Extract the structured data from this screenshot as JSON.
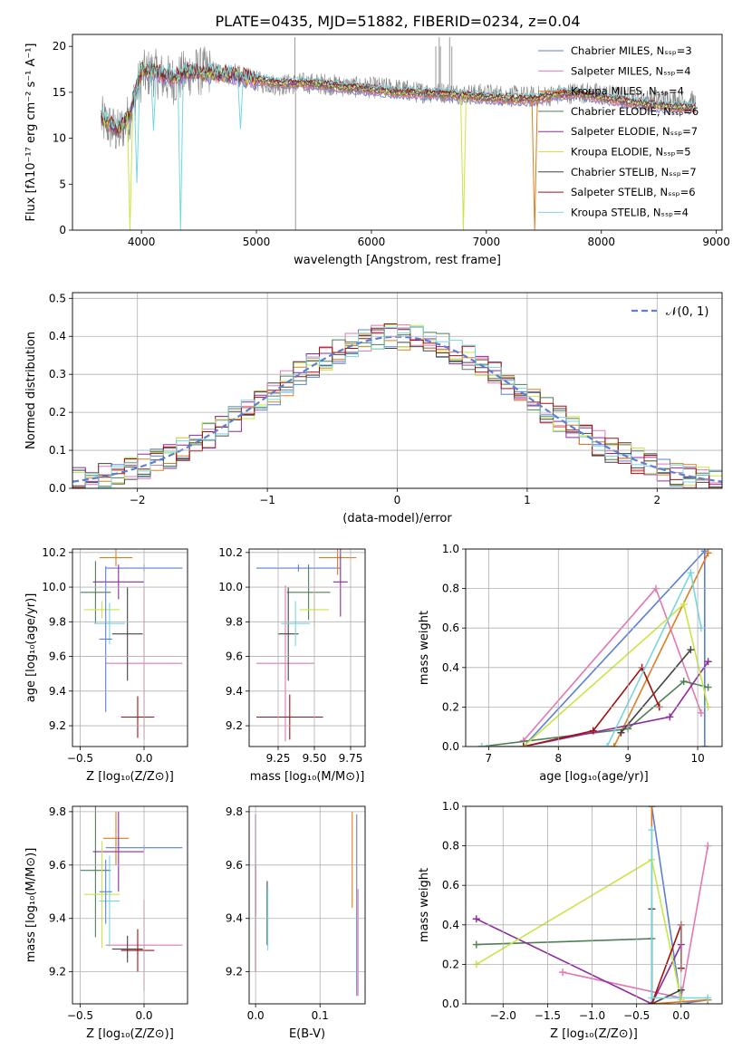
{
  "title": "PLATE=0435, MJD=51882, FIBERID=0234, z=0.04",
  "colors": {
    "chabrier_miles": "#5b7fd6",
    "salpeter_miles": "#e377b0",
    "kroupa_miles": "#e07b1f",
    "chabrier_elodie": "#4f7f55",
    "salpeter_elodie": "#8e2aa0",
    "kroupa_elodie": "#c8e646",
    "chabrier_stelib": "#444444",
    "salpeter_stelib": "#a31010",
    "kroupa_stelib": "#76d7e0",
    "observed": "#808080",
    "gaussian": "#5b7fd6"
  },
  "chart_data": [
    {
      "id": "spectrum",
      "type": "line",
      "xlabel": "wavelength [Angstrom, rest frame]",
      "ylabel": "Flux [fλ10⁻¹⁷ erg cm⁻² s⁻¹ A⁻¹]",
      "xlim": [
        3400,
        9050
      ],
      "ylim": [
        0,
        21.3
      ],
      "xticks": [
        "4000",
        "5000",
        "6000",
        "7000",
        "8000",
        "9000"
      ],
      "yticks": [
        "0",
        "5",
        "10",
        "15",
        "20"
      ],
      "legend_position": "top-right",
      "legend": [
        "Chabrier MILES, Nₛₛₚ=3",
        "Salpeter MILES, Nₛₛₚ=4",
        "Kroupa MILES, Nₛₛₚ=4",
        "Chabrier ELODIE, Nₛₛₚ=6",
        "Salpeter ELODIE, Nₛₛₚ=7",
        "Kroupa ELODIE, Nₛₛₚ=5",
        "Chabrier STELIB, Nₛₛₚ=7",
        "Salpeter STELIB, Nₛₛₚ=6",
        "Kroupa STELIB, Nₛₛₚ=4"
      ],
      "observed_continuum": [
        [
          3650,
          12.0
        ],
        [
          3800,
          10.5
        ],
        [
          3900,
          12.5
        ],
        [
          4000,
          16.8
        ],
        [
          4100,
          17.2
        ],
        [
          4200,
          16.5
        ],
        [
          4300,
          16.3
        ],
        [
          4400,
          17.2
        ],
        [
          4600,
          17.3
        ],
        [
          4800,
          17.0
        ],
        [
          5000,
          16.2
        ],
        [
          5200,
          15.8
        ],
        [
          5400,
          16.0
        ],
        [
          5600,
          15.9
        ],
        [
          5800,
          15.6
        ],
        [
          6000,
          15.5
        ],
        [
          6200,
          15.4
        ],
        [
          6400,
          15.0
        ],
        [
          6600,
          15.0
        ],
        [
          6800,
          14.8
        ],
        [
          7000,
          14.8
        ],
        [
          7200,
          14.6
        ],
        [
          7400,
          14.5
        ],
        [
          7600,
          14.7
        ],
        [
          7800,
          15.0
        ],
        [
          8000,
          14.8
        ],
        [
          8200,
          14.5
        ],
        [
          8400,
          14.2
        ],
        [
          8600,
          14.2
        ],
        [
          8820,
          14.0
        ]
      ],
      "observed_spikes": [
        [
          5340,
          0
        ],
        [
          5335,
          21
        ],
        [
          6560,
          20
        ],
        [
          6590,
          21
        ],
        [
          6600,
          20
        ],
        [
          6700,
          20
        ],
        [
          6680,
          21
        ]
      ],
      "model_continuum": [
        [
          3650,
          12.3
        ],
        [
          3800,
          10.8
        ],
        [
          3900,
          12.8
        ],
        [
          4000,
          17.4
        ],
        [
          4100,
          17.3
        ],
        [
          4200,
          16.8
        ],
        [
          4300,
          16.6
        ],
        [
          4400,
          17.2
        ],
        [
          4600,
          17.0
        ],
        [
          4800,
          16.8
        ],
        [
          5000,
          16.4
        ],
        [
          5200,
          15.9
        ],
        [
          5400,
          16.0
        ],
        [
          5600,
          15.8
        ],
        [
          5800,
          15.5
        ],
        [
          6000,
          15.3
        ],
        [
          6200,
          15.0
        ],
        [
          6400,
          14.9
        ],
        [
          6600,
          14.8
        ],
        [
          6800,
          14.6
        ],
        [
          7000,
          14.4
        ],
        [
          7200,
          14.3
        ],
        [
          7400,
          14.2
        ],
        [
          7600,
          14.7
        ],
        [
          7800,
          14.9
        ],
        [
          8000,
          14.4
        ],
        [
          8200,
          14.0
        ],
        [
          8400,
          13.6
        ],
        [
          8600,
          13.4
        ],
        [
          8820,
          13.3
        ]
      ],
      "model_dips": [
        {
          "series": 8,
          "x": 3960,
          "y": 5.1
        },
        {
          "series": 8,
          "x": 4105,
          "y": 10.8
        },
        {
          "series": 8,
          "x": 4340,
          "y": 0.0
        },
        {
          "series": 8,
          "x": 4861,
          "y": 11.0
        },
        {
          "series": 5,
          "x": 3900,
          "y": 0.0
        },
        {
          "series": 5,
          "x": 6800,
          "y": 0.0
        },
        {
          "series": 2,
          "x": 7420,
          "y": 0.0
        }
      ]
    },
    {
      "id": "residual-histogram",
      "type": "histogram",
      "xlabel": "(data-model)/error",
      "ylabel": "Normed distribution",
      "xlim": [
        -2.5,
        2.5
      ],
      "ylim": [
        0,
        0.515
      ],
      "xticks": [
        "−2",
        "−1",
        "0",
        "1",
        "2"
      ],
      "yticks": [
        "0.0",
        "0.1",
        "0.2",
        "0.3",
        "0.4",
        "0.5"
      ],
      "legend_position": "top-right",
      "legend": [
        "𝒩(0, 1)"
      ],
      "bin_width": 0.1
    },
    {
      "id": "age-vs-Z",
      "type": "errorbar",
      "xlabel": "Z [log₁₀(Z/Z⊙)]",
      "ylabel": "age  [log₁₀(age/yr)]",
      "xlim": [
        -0.56,
        0.34
      ],
      "ylim": [
        9.08,
        10.22
      ],
      "xticks": [
        "−0.5",
        "0.0"
      ],
      "yticks": [
        "9.2",
        "9.4",
        "9.6",
        "9.8",
        "10.0",
        "10.2"
      ],
      "points": [
        {
          "series": 0,
          "x": 0.0,
          "xe": 0.3,
          "y": 10.11,
          "ye": 0.02
        },
        {
          "series": 1,
          "x": 0.0,
          "xe": 0.3,
          "y": 9.56,
          "ye": 0.44
        },
        {
          "series": 2,
          "x": -0.22,
          "xe": 0.13,
          "y": 10.17,
          "ye": 0.05
        },
        {
          "series": 3,
          "x": -0.38,
          "xe": 0.12,
          "y": 9.97,
          "ye": 0.18
        },
        {
          "series": 4,
          "x": -0.2,
          "xe": 0.2,
          "y": 10.03,
          "ye": 0.1
        },
        {
          "series": 5,
          "x": -0.33,
          "xe": 0.14,
          "y": 9.87,
          "ye": 0.05
        },
        {
          "series": 6,
          "x": -0.13,
          "xe": 0.12,
          "y": 9.73,
          "ye": 0.27
        },
        {
          "series": 7,
          "x": -0.05,
          "xe": 0.13,
          "y": 9.25,
          "ye": 0.12
        },
        {
          "series": 8,
          "x": -0.27,
          "xe": 0.12,
          "y": 9.79,
          "ye": 0.12
        },
        {
          "series": 0,
          "x": -0.3,
          "xe": 0.05,
          "y": 9.7,
          "ye": 0.42
        }
      ]
    },
    {
      "id": "age-vs-mass",
      "type": "errorbar",
      "xlabel": "mass [log₁₀(M/M⊙)]",
      "ylabel": "",
      "xlim": [
        9.05,
        9.85
      ],
      "ylim": [
        9.08,
        10.22
      ],
      "xticks": [
        "9.25",
        "9.50",
        "9.75"
      ],
      "yticks": [
        "9.2",
        "9.4",
        "9.6",
        "9.8",
        "10.0",
        "10.2"
      ],
      "points": [
        {
          "series": 0,
          "x": 9.39,
          "xe": 0.29,
          "y": 10.11,
          "ye": 0.02
        },
        {
          "series": 1,
          "x": 9.3,
          "xe": 0.2,
          "y": 9.56,
          "ye": 0.45
        },
        {
          "series": 2,
          "x": 9.66,
          "xe": 0.13,
          "y": 10.17,
          "ye": 0.1
        },
        {
          "series": 3,
          "x": 9.46,
          "xe": 0.15,
          "y": 9.97,
          "ye": 0.16
        },
        {
          "series": 4,
          "x": 9.68,
          "xe": 0.05,
          "y": 10.03,
          "ye": 0.2
        },
        {
          "series": 5,
          "x": 9.5,
          "xe": 0.1,
          "y": 9.87,
          "ye": 0.1
        },
        {
          "series": 6,
          "x": 9.32,
          "xe": 0.07,
          "y": 9.73,
          "ye": 0.27
        },
        {
          "series": 7,
          "x": 9.33,
          "xe": 0.23,
          "y": 9.25,
          "ye": 0.13
        },
        {
          "series": 8,
          "x": 9.37,
          "xe": 0.1,
          "y": 9.79,
          "ye": 0.13
        }
      ]
    },
    {
      "id": "massweight-vs-age",
      "type": "line",
      "xlabel": "age  [log₁₀(age/yr)]",
      "ylabel": "mass weight",
      "xlim": [
        6.67,
        10.35
      ],
      "ylim": [
        0,
        1.0
      ],
      "xticks": [
        "7",
        "8",
        "9",
        "10"
      ],
      "yticks": [
        "0.0",
        "0.2",
        "0.4",
        "0.6",
        "0.8",
        "1.0"
      ],
      "series": [
        {
          "series": 0,
          "points": [
            [
              7.5,
              0.0
            ],
            [
              10.1,
              0.99
            ],
            [
              10.1,
              0.0
            ]
          ]
        },
        {
          "series": 1,
          "points": [
            [
              7.5,
              0.03
            ],
            [
              9.4,
              0.8
            ],
            [
              10.05,
              0.17
            ]
          ]
        },
        {
          "series": 2,
          "points": [
            [
              6.9,
              0.0
            ],
            [
              8.8,
              0.0
            ],
            [
              10.15,
              0.98
            ]
          ]
        },
        {
          "series": 3,
          "points": [
            [
              6.9,
              0.0
            ],
            [
              9.0,
              0.09
            ],
            [
              9.8,
              0.33
            ],
            [
              10.15,
              0.3
            ]
          ]
        },
        {
          "series": 4,
          "points": [
            [
              7.5,
              0.0
            ],
            [
              9.6,
              0.15
            ],
            [
              10.15,
              0.43
            ]
          ]
        },
        {
          "series": 5,
          "points": [
            [
              7.5,
              0.0
            ],
            [
              9.8,
              0.72
            ],
            [
              10.15,
              0.2
            ]
          ]
        },
        {
          "series": 6,
          "points": [
            [
              8.9,
              0.07
            ],
            [
              9.9,
              0.49
            ]
          ]
        },
        {
          "series": 7,
          "points": [
            [
              7.5,
              0.0
            ],
            [
              8.5,
              0.08
            ],
            [
              9.2,
              0.4
            ],
            [
              9.45,
              0.2
            ]
          ]
        },
        {
          "series": 8,
          "points": [
            [
              6.9,
              0.0
            ],
            [
              8.7,
              0.0
            ],
            [
              9.9,
              0.88
            ],
            [
              10.05,
              0.6
            ]
          ]
        }
      ]
    },
    {
      "id": "mass-vs-Z",
      "type": "errorbar",
      "xlabel": "Z [log₁₀(Z/Z⊙)]",
      "ylabel": "mass [log₁₀(M/M⊙)]",
      "xlim": [
        -0.56,
        0.34
      ],
      "ylim": [
        9.08,
        9.82
      ],
      "xticks": [
        "−0.5",
        "0.0"
      ],
      "yticks": [
        "9.2",
        "9.4",
        "9.6",
        "9.8"
      ],
      "points": [
        {
          "series": 0,
          "x": 0.0,
          "xe": 0.3,
          "y": 9.665,
          "ye": 0.01
        },
        {
          "series": 1,
          "x": 0.0,
          "xe": 0.3,
          "y": 9.3,
          "ye": 0.17
        },
        {
          "series": 2,
          "x": -0.22,
          "xe": 0.1,
          "y": 9.7,
          "ye": 0.1
        },
        {
          "series": 3,
          "x": -0.38,
          "xe": 0.12,
          "y": 9.58,
          "ye": 0.25
        },
        {
          "series": 4,
          "x": -0.2,
          "xe": 0.2,
          "y": 9.65,
          "ye": 0.15
        },
        {
          "series": 5,
          "x": -0.33,
          "xe": 0.14,
          "y": 9.49,
          "ye": 0.2
        },
        {
          "series": 6,
          "x": -0.13,
          "xe": 0.12,
          "y": 9.285,
          "ye": 0.05
        },
        {
          "series": 7,
          "x": -0.05,
          "xe": 0.13,
          "y": 9.28,
          "ye": 0.08
        },
        {
          "series": 8,
          "x": -0.27,
          "xe": 0.08,
          "y": 9.465,
          "ye": 0.17
        },
        {
          "series": 0,
          "x": -0.3,
          "xe": 0.05,
          "y": 9.5,
          "ye": 0.12
        }
      ]
    },
    {
      "id": "mass-vs-ebv",
      "type": "errorbar",
      "xlabel": "E(B-V)",
      "ylabel": "",
      "xlim": [
        -0.01,
        0.17
      ],
      "ylim": [
        9.08,
        9.82
      ],
      "xticks": [
        "0.0",
        "0.1"
      ],
      "yticks": [
        "9.2",
        "9.4",
        "9.6",
        "9.8"
      ],
      "points": [
        {
          "series": 4,
          "x": 0.0,
          "xe": 0.0,
          "y": 9.6,
          "ye": 0.19
        },
        {
          "series": 7,
          "x": 0.0,
          "xe": 0.0,
          "y": 9.4,
          "ye": 0.2
        },
        {
          "series": 6,
          "x": 0.018,
          "xe": 0.0,
          "y": 9.42,
          "ye": 0.12
        },
        {
          "series": 8,
          "x": 0.019,
          "xe": 0.0,
          "y": 9.4,
          "ye": 0.12
        },
        {
          "series": 2,
          "x": 0.15,
          "xe": 0.0,
          "y": 9.62,
          "ye": 0.18
        },
        {
          "series": 0,
          "x": 0.157,
          "xe": 0.0,
          "y": 9.45,
          "ye": 0.34
        },
        {
          "series": 1,
          "x": 0.159,
          "xe": 0.0,
          "y": 9.31,
          "ye": 0.2
        }
      ]
    },
    {
      "id": "massweight-vs-Z",
      "type": "line",
      "xlabel": "Z [log₁₀(Z/Z⊙)]",
      "ylabel": "mass weight",
      "xlim": [
        -2.42,
        0.46
      ],
      "ylim": [
        0,
        1.0
      ],
      "xticks": [
        "−2.0",
        "−1.5",
        "−1.0",
        "−0.5",
        "0.0"
      ],
      "yticks": [
        "0.0",
        "0.2",
        "0.4",
        "0.6",
        "0.8",
        "1.0"
      ],
      "series": [
        {
          "series": 0,
          "points": [
            [
              -0.33,
              1.0
            ],
            [
              0.0,
              0.0
            ],
            [
              0.3,
              0.02
            ]
          ]
        },
        {
          "series": 1,
          "points": [
            [
              -1.33,
              0.16
            ],
            [
              0.0,
              0.03
            ],
            [
              0.3,
              0.8
            ]
          ]
        },
        {
          "series": 2,
          "points": [
            [
              -0.33,
              1.0
            ],
            [
              -0.33,
              0.0
            ],
            [
              0.3,
              0.02
            ]
          ]
        },
        {
          "series": 3,
          "points": [
            [
              -2.3,
              0.3
            ],
            [
              -0.33,
              0.33
            ],
            [
              -0.33,
              0.0
            ]
          ]
        },
        {
          "series": 4,
          "points": [
            [
              -2.3,
              0.43
            ],
            [
              -0.33,
              0.0
            ],
            [
              0.0,
              0.3
            ]
          ]
        },
        {
          "series": 5,
          "points": [
            [
              -2.3,
              0.2
            ],
            [
              -0.33,
              0.73
            ],
            [
              0.0,
              0.02
            ]
          ]
        },
        {
          "series": 6,
          "points": [
            [
              -0.33,
              0.48
            ],
            [
              -0.33,
              0.0
            ],
            [
              0.0,
              0.07
            ]
          ]
        },
        {
          "series": 7,
          "points": [
            [
              -0.33,
              0.0
            ],
            [
              0.0,
              0.4
            ],
            [
              0.0,
              0.18
            ]
          ]
        },
        {
          "series": 8,
          "points": [
            [
              -0.33,
              0.88
            ],
            [
              -0.33,
              0.03
            ],
            [
              0.3,
              0.03
            ]
          ]
        }
      ]
    }
  ]
}
